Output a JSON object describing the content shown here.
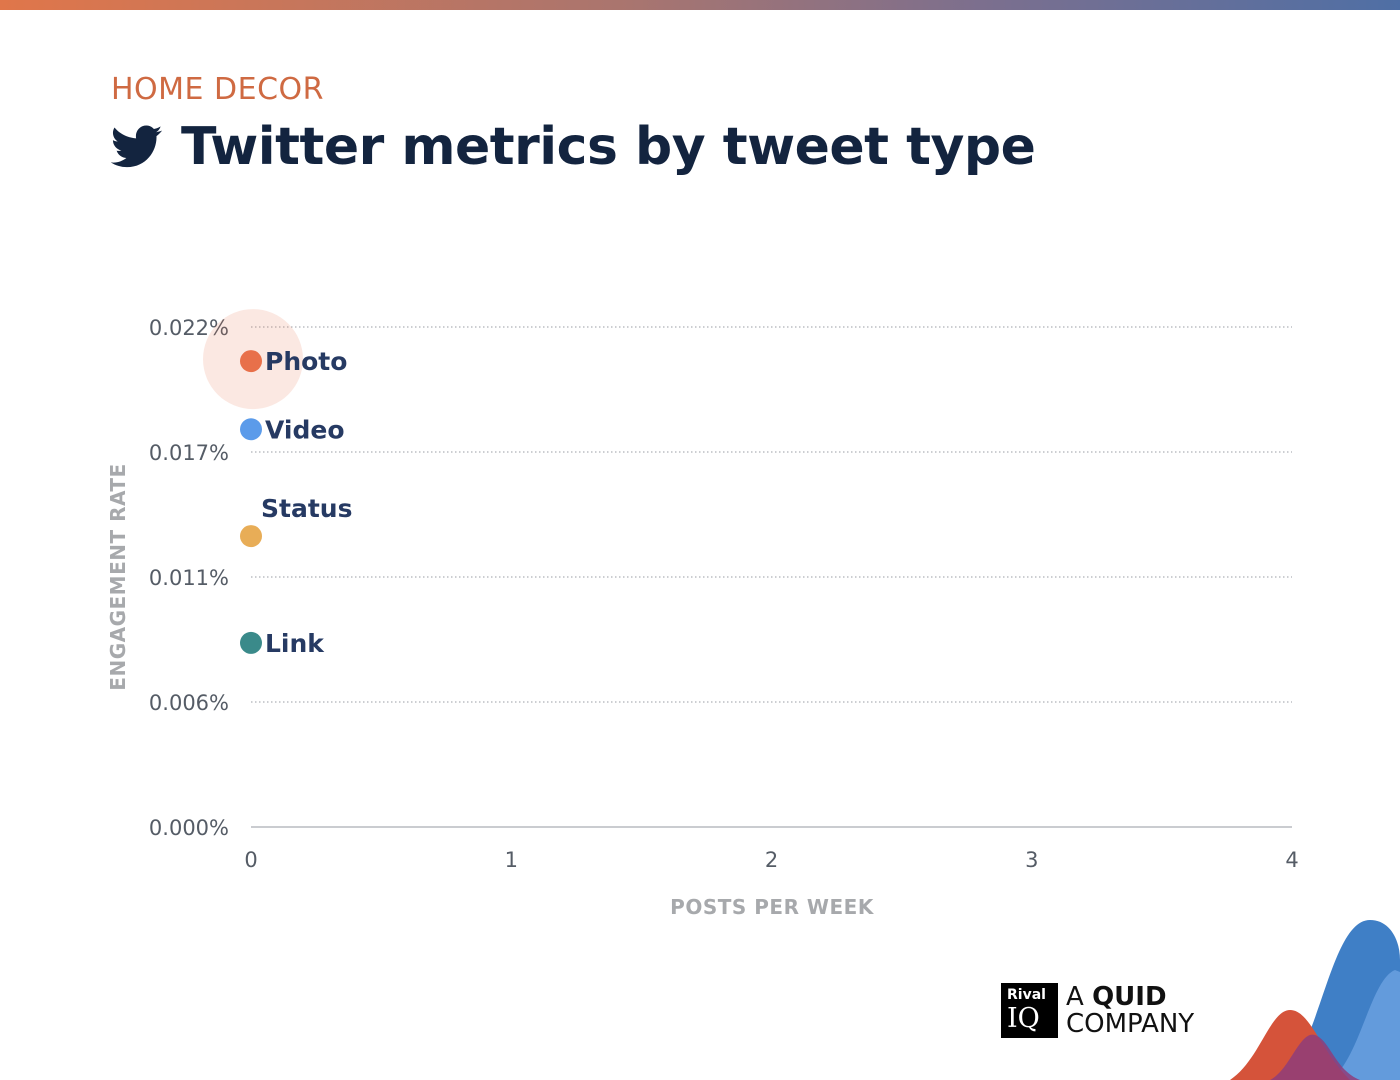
{
  "header": {
    "category": "HOME DECOR",
    "title": "Twitter metrics by tweet type",
    "title_icon": "twitter-bird-icon"
  },
  "chart_data": {
    "type": "scatter",
    "xlabel": "POSTS PER WEEK",
    "ylabel": "ENGAGEMENT RATE",
    "xlim": [
      0,
      4
    ],
    "ylim": [
      0,
      0.022
    ],
    "x_ticks": [
      "0",
      "1",
      "2",
      "3",
      "4"
    ],
    "y_ticks": [
      "0.000%",
      "0.006%",
      "0.011%",
      "0.017%",
      "0.022%"
    ],
    "y_tick_values": [
      0,
      0.0055,
      0.011,
      0.0165,
      0.022
    ],
    "grid": true,
    "points": [
      {
        "label": "Photo",
        "x": 0.0,
        "y": 0.0205,
        "color": "#e8704a",
        "highlight": true
      },
      {
        "label": "Video",
        "x": 0.0,
        "y": 0.0175,
        "color": "#5b9bea",
        "highlight": false
      },
      {
        "label": "Status",
        "x": 0.0,
        "y": 0.0128,
        "color": "#e8ad57",
        "highlight": false
      },
      {
        "label": "Link",
        "x": 0.0,
        "y": 0.0081,
        "color": "#3a8a8a",
        "highlight": false
      }
    ]
  },
  "logo": {
    "badge_top": "Rival",
    "badge_bottom": "IQ",
    "line1_prefix": "A",
    "line1_bold": "QUID",
    "line2": "COMPANY"
  },
  "colors": {
    "accent_orange": "#cf6a42",
    "title_navy": "#13243f",
    "label_navy": "#263a63",
    "axis_gray": "#a7a9ac",
    "decor_blue": "#3f7fc6",
    "decor_red": "#d5533a",
    "decor_purple": "#8e3d7a"
  }
}
